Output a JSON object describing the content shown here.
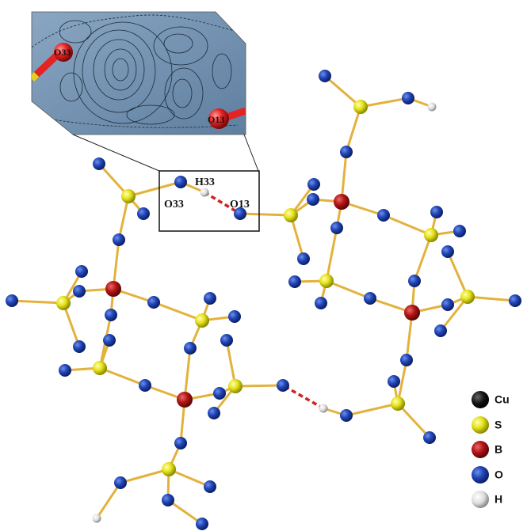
{
  "inset_labels": [
    "O33",
    "O13"
  ],
  "box_labels": [
    "H33",
    "O33",
    "O13"
  ],
  "legend": [
    "Cu",
    "S",
    "B",
    "O",
    "H"
  ]
}
